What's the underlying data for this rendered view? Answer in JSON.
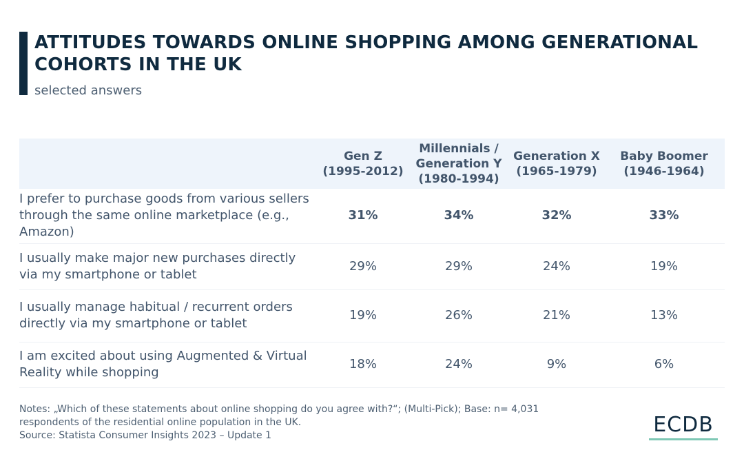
{
  "title": "ATTITUDES TOWARDS ONLINE SHOPPING AMONG GENERATIONAL COHORTS IN THE UK",
  "subtitle": "selected answers",
  "colors": {
    "title": "#0f2a3f",
    "text": "#42556b",
    "header_bg": "#eef4fb",
    "accent": "#7ec8b5"
  },
  "chart_data": {
    "type": "table",
    "title": "ATTITUDES TOWARDS ONLINE SHOPPING AMONG GENERATIONAL COHORTS IN THE UK",
    "subtitle": "selected answers",
    "columns": [
      {
        "line1": "Gen Z",
        "line2": "(1995-2012)",
        "line3": ""
      },
      {
        "line1": "Millennials /",
        "line2": "Generation Y",
        "line3": "(1980-1994)"
      },
      {
        "line1": "Generation X",
        "line2": "(1965-1979)",
        "line3": ""
      },
      {
        "line1": "Baby Boomer",
        "line2": "(1946-1964)",
        "line3": ""
      }
    ],
    "rows": [
      {
        "statement": "I prefer to purchase goods from various sellers through the same online marketplace (e.g., Amazon)",
        "values": [
          "31%",
          "34%",
          "32%",
          "33%"
        ]
      },
      {
        "statement": "I usually make major new purchases directly via my smartphone or tablet",
        "values": [
          "29%",
          "29%",
          "24%",
          "19%"
        ]
      },
      {
        "statement": "I usually manage habitual / recurrent orders directly via my smartphone or tablet",
        "values": [
          "19%",
          "26%",
          "21%",
          "13%"
        ]
      },
      {
        "statement": "I am excited about using Augmented & Virtual Reality while shopping",
        "values": [
          "18%",
          "24%",
          "9%",
          "6%"
        ]
      }
    ]
  },
  "notes": {
    "line1": "Notes: „Which of these statements about online shopping do you agree with?“; (Multi-Pick); Base: n= 4,031",
    "line2": "respondents of the residential online population in the UK.",
    "line3": "Source: Statista Consumer Insights 2023 – Update 1"
  },
  "logo": {
    "text": "ECDB"
  }
}
